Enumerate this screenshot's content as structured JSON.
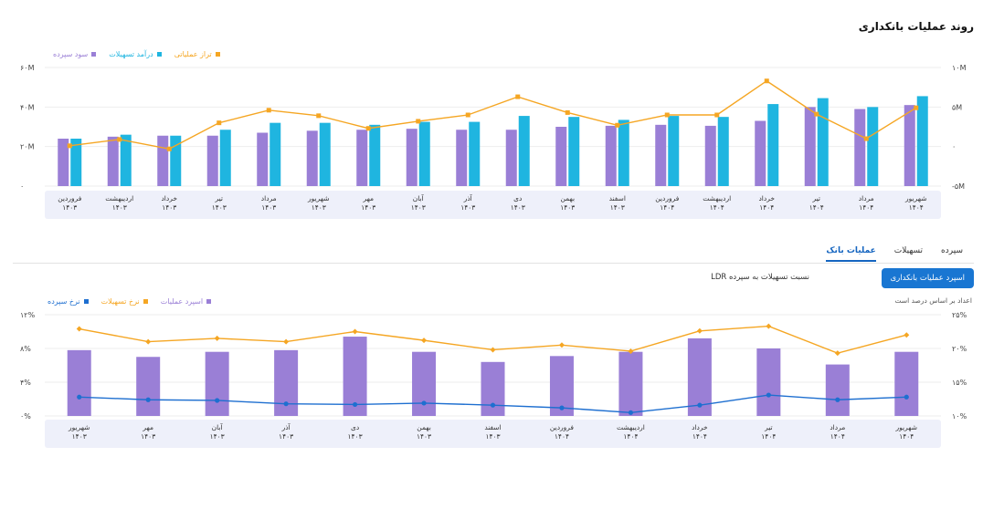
{
  "page": {
    "title": "روند عملیات بانکداری",
    "tabs": [
      {
        "label": "سپرده",
        "active": false
      },
      {
        "label": "تسهیلات",
        "active": false
      },
      {
        "label": "عملیات بانک",
        "active": true
      }
    ],
    "buttons": {
      "primary": "اسپرد عملیات بانکداری",
      "secondary": "نسبت تسهیلات به سپرده LDR"
    },
    "note": "اعداد بر اساس درصد است"
  },
  "colors": {
    "purple": "#9a7fd6",
    "cyan": "#1fb5e0",
    "orange": "#f5a623",
    "blue": "#1e6fd0",
    "axis_bg": "#eef0fa"
  },
  "chart_data": [
    {
      "type": "bar",
      "legend": [
        "تراز عملیاتی",
        "درآمد تسهیلات",
        "سود سپرده"
      ],
      "categories": [
        [
          "فروردین",
          "۱۴۰۳"
        ],
        [
          "اردیبهشت",
          "۱۴۰۳"
        ],
        [
          "خرداد",
          "۱۴۰۳"
        ],
        [
          "تیر",
          "۱۴۰۳"
        ],
        [
          "مرداد",
          "۱۴۰۳"
        ],
        [
          "شهریور",
          "۱۴۰۳"
        ],
        [
          "مهر",
          "۱۴۰۳"
        ],
        [
          "آبان",
          "۱۴۰۳"
        ],
        [
          "آذر",
          "۱۴۰۳"
        ],
        [
          "دی",
          "۱۴۰۳"
        ],
        [
          "بهمن",
          "۱۴۰۳"
        ],
        [
          "اسفند",
          "۱۴۰۳"
        ],
        [
          "فروردین",
          "۱۴۰۴"
        ],
        [
          "اردیبهشت",
          "۱۴۰۴"
        ],
        [
          "خرداد",
          "۱۴۰۴"
        ],
        [
          "تیر",
          "۱۴۰۴"
        ],
        [
          "مرداد",
          "۱۴۰۴"
        ],
        [
          "شهریور",
          "۱۴۰۴"
        ]
      ],
      "left_axis": {
        "ticks": [
          "۰",
          "۲۰M",
          "۴۰M",
          "۶۰M"
        ],
        "range": [
          0,
          60
        ]
      },
      "right_axis": {
        "ticks": [
          "-۵M",
          "۰",
          "۵M",
          "۱۰M"
        ],
        "range": [
          -5,
          10
        ]
      },
      "series": [
        {
          "name": "سود سپرده",
          "axis": "left",
          "kind": "bar",
          "values": [
            24,
            25,
            25.5,
            25.5,
            27,
            28,
            28.5,
            29,
            28.5,
            28.5,
            30,
            30.5,
            31,
            30.5,
            33,
            40,
            39,
            41
          ]
        },
        {
          "name": "درآمد تسهیلات",
          "axis": "left",
          "kind": "bar",
          "values": [
            24,
            26,
            25.5,
            28.5,
            32,
            32,
            31,
            32.5,
            32.5,
            35.5,
            35,
            33.5,
            35.5,
            35,
            41.5,
            44.5,
            40,
            45.5
          ]
        },
        {
          "name": "تراز عملیاتی",
          "axis": "right",
          "kind": "line",
          "values": [
            0.1,
            0.9,
            -0.3,
            3,
            4.6,
            3.9,
            2.3,
            3.2,
            4,
            6.3,
            4.3,
            2.7,
            4,
            4,
            8.3,
            4.1,
            1,
            4.9
          ]
        }
      ]
    },
    {
      "type": "bar",
      "legend": [
        "اسپرد عملیات",
        "نرخ تسهیلات",
        "نرخ سپرده"
      ],
      "categories": [
        [
          "شهریور",
          "۱۴۰۳"
        ],
        [
          "مهر",
          "۱۴۰۳"
        ],
        [
          "آبان",
          "۱۴۰۳"
        ],
        [
          "آذر",
          "۱۴۰۳"
        ],
        [
          "دی",
          "۱۴۰۳"
        ],
        [
          "بهمن",
          "۱۴۰۳"
        ],
        [
          "اسفند",
          "۱۴۰۳"
        ],
        [
          "فروردین",
          "۱۴۰۴"
        ],
        [
          "اردیبهشت",
          "۱۴۰۴"
        ],
        [
          "خرداد",
          "۱۴۰۴"
        ],
        [
          "تیر",
          "۱۴۰۴"
        ],
        [
          "مرداد",
          "۱۴۰۴"
        ],
        [
          "شهریور",
          "۱۴۰۴"
        ]
      ],
      "left_axis": {
        "ticks": [
          "۰%",
          "۴%",
          "۸%",
          "۱۲%"
        ],
        "range": [
          0,
          12
        ]
      },
      "right_axis": {
        "ticks": [
          "۱۰%",
          "۱۵%",
          "۲۰%",
          "۲۵%"
        ],
        "range": [
          10,
          25
        ]
      },
      "series": [
        {
          "name": "اسپرد عملیات",
          "axis": "left",
          "kind": "bar",
          "values": [
            7.8,
            7.0,
            7.6,
            7.8,
            9.4,
            7.6,
            6.4,
            7.1,
            7.6,
            9.2,
            8.0,
            6.1,
            7.6
          ]
        },
        {
          "name": "نرخ تسهیلات",
          "axis": "right",
          "kind": "line",
          "values": [
            22.9,
            21.0,
            21.5,
            21.0,
            22.5,
            21.2,
            19.8,
            20.5,
            19.6,
            22.6,
            23.3,
            19.3,
            22.0
          ]
        },
        {
          "name": "نرخ سپرده",
          "axis": "right",
          "kind": "line",
          "values": [
            12.8,
            12.4,
            12.3,
            11.8,
            11.7,
            11.9,
            11.6,
            11.2,
            10.5,
            11.6,
            13.1,
            12.4,
            12.8
          ]
        }
      ]
    }
  ]
}
